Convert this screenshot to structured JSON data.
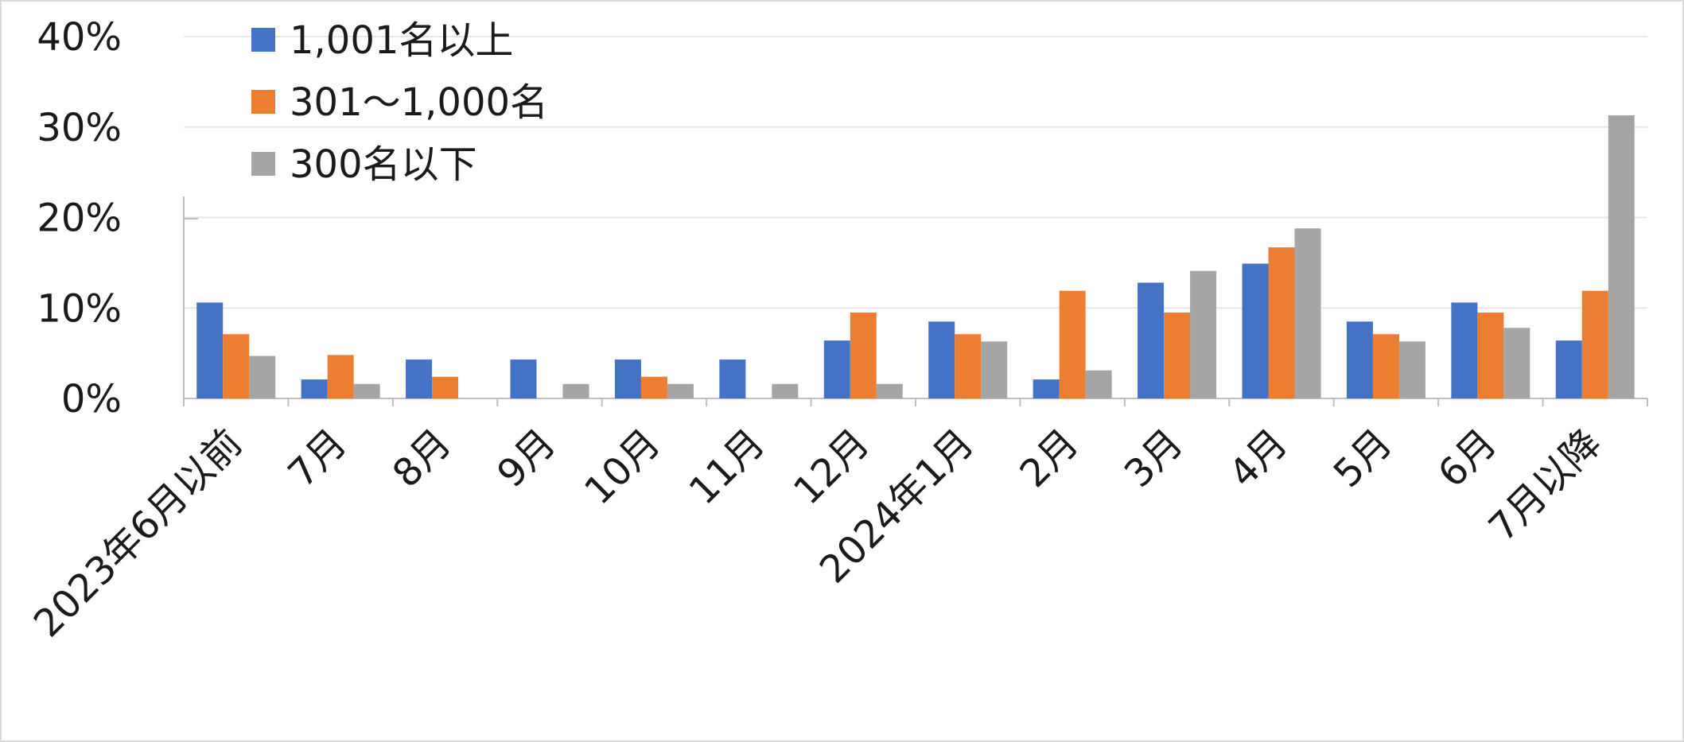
{
  "chart_data": {
    "type": "bar",
    "categories": [
      "2023年6月以前",
      "7月",
      "8月",
      "9月",
      "10月",
      "11月",
      "12月",
      "2024年1月",
      "2月",
      "3月",
      "4月",
      "5月",
      "6月",
      "7月以降"
    ],
    "series": [
      {
        "name": "1,001名以上",
        "color": "#4472c4",
        "values": [
          10.6,
          2.1,
          4.3,
          4.3,
          4.3,
          4.3,
          6.4,
          8.5,
          2.1,
          12.8,
          14.9,
          8.5,
          10.6,
          6.4
        ]
      },
      {
        "name": "301～1,000名",
        "color": "#ed7d31",
        "values": [
          7.1,
          4.8,
          2.4,
          0,
          2.4,
          0,
          9.5,
          7.1,
          11.9,
          9.5,
          16.7,
          7.1,
          9.5,
          11.9
        ]
      },
      {
        "name": "300名以下",
        "color": "#a5a5a5",
        "values": [
          4.7,
          1.6,
          0,
          1.6,
          1.6,
          1.6,
          1.6,
          6.3,
          3.1,
          14.1,
          18.8,
          6.3,
          7.8,
          31.3
        ]
      }
    ],
    "y_ticks": [
      "0%",
      "10%",
      "20%",
      "30%",
      "40%"
    ],
    "ylim": [
      0,
      40
    ],
    "y_unit": "%",
    "grid": true,
    "legend_position": "top-left",
    "title": "",
    "xlabel": "",
    "ylabel": ""
  }
}
